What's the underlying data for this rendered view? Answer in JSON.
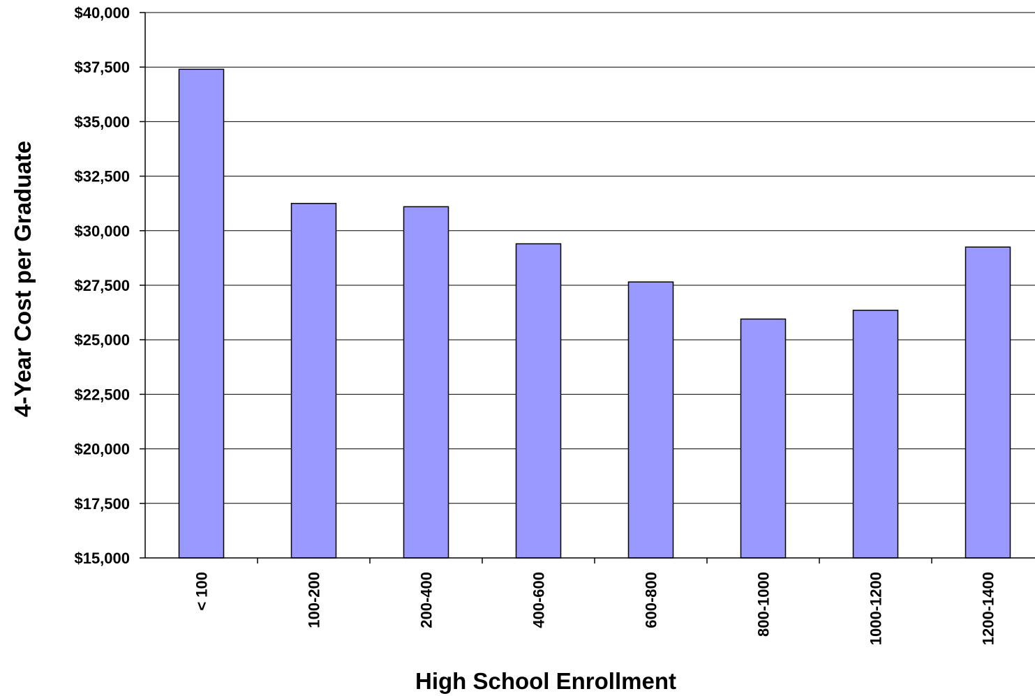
{
  "chart_data": {
    "type": "bar",
    "title": "",
    "xlabel": "High School Enrollment",
    "ylabel": "4-Year Cost per Graduate",
    "categories": [
      "< 100",
      "100-200",
      "200-400",
      "400-600",
      "600-800",
      "800-1000",
      "1000-1200",
      "1200-1400"
    ],
    "values": [
      37400,
      31250,
      31100,
      29400,
      27650,
      25950,
      26350,
      29250
    ],
    "ylim": [
      15000,
      40000
    ],
    "yticks": [
      15000,
      17500,
      20000,
      22500,
      25000,
      27500,
      30000,
      32500,
      35000,
      37500,
      40000
    ],
    "ytick_labels": [
      "$15,000",
      "$17,500",
      "$20,000",
      "$22,500",
      "$25,000",
      "$27,500",
      "$30,000",
      "$32,500",
      "$35,000",
      "$37,500",
      "$40,000"
    ],
    "grid": true,
    "legend": "none",
    "bar_color": "#9999ff"
  }
}
